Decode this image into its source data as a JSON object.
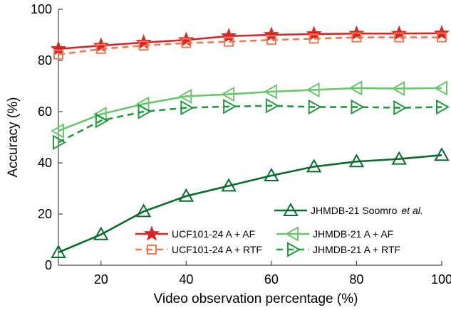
{
  "chart_data": {
    "type": "line",
    "xlabel": "Video observation percentage (%)",
    "ylabel": "Accuracy (%)",
    "xlim": [
      10,
      100
    ],
    "ylim": [
      0,
      100
    ],
    "xticks": [
      20,
      40,
      60,
      80,
      100
    ],
    "yticks": [
      0,
      20,
      40,
      60,
      80,
      100
    ],
    "grid": false,
    "x": [
      10,
      20,
      30,
      40,
      50,
      60,
      70,
      80,
      90,
      100
    ],
    "series": [
      {
        "name": "UCF101-24 A + AF",
        "color": "#d62728",
        "dash": "solid",
        "marker": "star",
        "values": [
          84.5,
          85.8,
          87.0,
          88.0,
          89.5,
          90.0,
          90.3,
          90.5,
          90.5,
          90.6
        ]
      },
      {
        "name": "UCF101-24 A + RTF",
        "color": "#f07a50",
        "dash": "dashed",
        "marker": "square",
        "values": [
          82.3,
          84.5,
          85.8,
          86.8,
          87.3,
          88.0,
          88.5,
          89.0,
          89.0,
          89.0
        ]
      },
      {
        "name": "JHMDB-21 A + AF",
        "color": "#6cc66c",
        "dash": "solid",
        "marker": "triangle-left",
        "values": [
          52.5,
          59.0,
          63.0,
          66.0,
          66.8,
          67.8,
          68.5,
          69.2,
          69.0,
          69.2
        ]
      },
      {
        "name": "JHMDB-21 A + RTF",
        "color": "#1f9a3e",
        "dash": "dashed",
        "marker": "triangle-right",
        "values": [
          48.0,
          56.5,
          60.0,
          61.5,
          62.0,
          62.3,
          61.8,
          61.8,
          61.5,
          61.8
        ]
      },
      {
        "name": "JHMDB-21 Soomro",
        "name_suffix": "et al.",
        "color": "#0a6b2e",
        "dash": "solid",
        "marker": "triangle-up",
        "values": [
          5.0,
          12.0,
          21.0,
          27.0,
          31.0,
          35.0,
          38.5,
          40.5,
          41.5,
          43.0
        ]
      }
    ]
  }
}
